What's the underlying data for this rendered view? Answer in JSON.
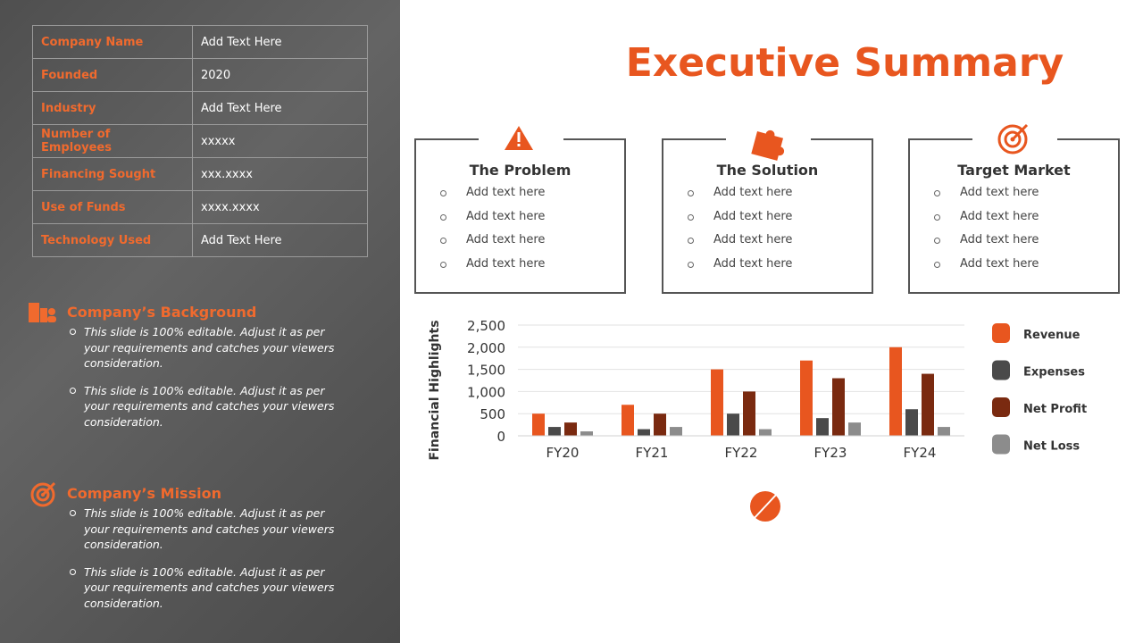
{
  "title": "Executive Summary",
  "table": {
    "rows": [
      [
        "Company Name",
        "Add Text Here"
      ],
      [
        "Founded",
        "2020"
      ],
      [
        "Industry",
        "Add Text Here"
      ],
      [
        "Number of Employees",
        "xxxxx"
      ],
      [
        "Financing Sought",
        "xxx.xxxx"
      ],
      [
        "Use of Funds",
        "xxxx.xxxx"
      ],
      [
        "Technology Used",
        "Add Text Here"
      ]
    ]
  },
  "sections": [
    {
      "title": "Company’s Background",
      "bullets": [
        "This slide is 100% editable. Adjust it as per your requirements and catches your viewers consideration.",
        "This slide is 100% editable. Adjust it as per your requirements and catches your viewers consideration."
      ]
    },
    {
      "title": "Company’s Mission",
      "bullets": [
        "This slide is 100% editable. Adjust it as per your requirements and catches your viewers consideration.",
        "This slide is 100% editable. Adjust it as per your requirements and catches your viewers consideration."
      ]
    }
  ],
  "boxes": [
    {
      "title": "The Problem",
      "bullets": [
        "Add text here",
        "Add text here",
        "Add text here",
        "Add text here"
      ]
    },
    {
      "title": "The Solution",
      "bullets": [
        "Add text here",
        "Add text here",
        "Add text here",
        "Add text here"
      ]
    },
    {
      "title": "Target Market",
      "bullets": [
        "Add text here",
        "Add text here",
        "Add text here",
        "Add text here"
      ]
    }
  ],
  "chart_data": {
    "type": "bar",
    "y_label": "Financial Highlights",
    "categories": [
      "FY20",
      "FY21",
      "FY22",
      "FY23",
      "FY24"
    ],
    "series": [
      {
        "name": "Revenue",
        "color": "#e8561f",
        "values": [
          500,
          700,
          1500,
          1700,
          2000
        ]
      },
      {
        "name": "Expenses",
        "color": "#4a4a4a",
        "values": [
          200,
          150,
          500,
          400,
          600
        ]
      },
      {
        "name": "Net Profit",
        "color": "#7a2a10",
        "values": [
          300,
          500,
          1000,
          1300,
          1400
        ]
      },
      {
        "name": "Net Loss",
        "color": "#8c8c8c",
        "values": [
          100,
          200,
          150,
          300,
          200
        ]
      }
    ],
    "ylim": [
      0,
      2500
    ],
    "yticks": [
      0,
      500,
      {
        "value": 1000,
        "label": "1,000"
      },
      {
        "value": 1500,
        "label": "1,500"
      },
      {
        "value": 2000,
        "label": "2,000"
      },
      {
        "value": 2500,
        "label": "2,500"
      }
    ],
    "grid": true
  }
}
